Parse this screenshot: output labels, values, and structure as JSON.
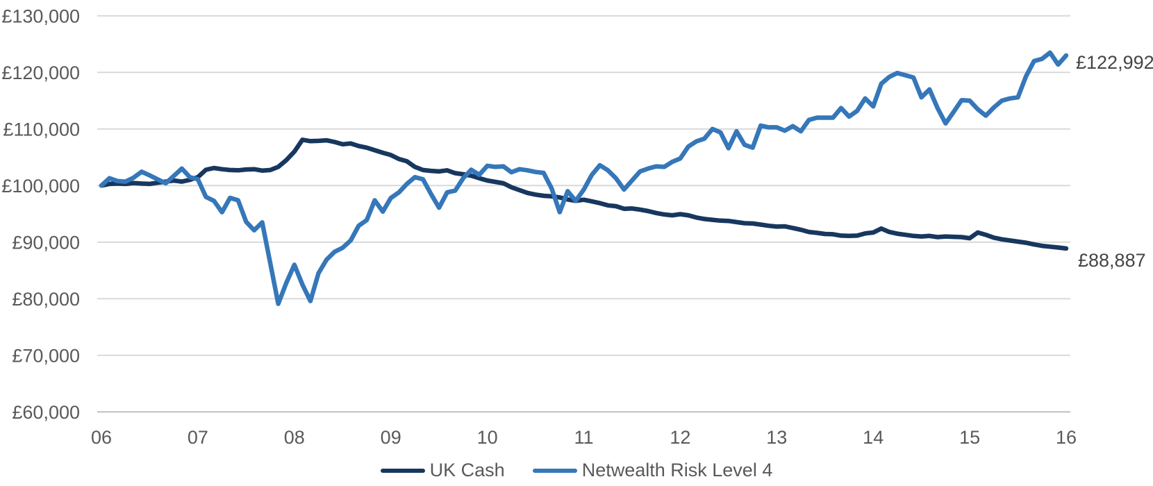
{
  "chart_data": {
    "type": "line",
    "title": "",
    "xlabel": "",
    "ylabel": "",
    "grid": "horizontal",
    "legend_position": "bottom",
    "ylim": [
      60000,
      130000
    ],
    "y_ticks": [
      {
        "value": 130000,
        "label": "£130,000"
      },
      {
        "value": 120000,
        "label": "£120,000"
      },
      {
        "value": 110000,
        "label": "£110,000"
      },
      {
        "value": 100000,
        "label": "£100,000"
      },
      {
        "value": 90000,
        "label": "£90,000"
      },
      {
        "value": 80000,
        "label": "£80,000"
      },
      {
        "value": 70000,
        "label": "£70,000"
      },
      {
        "value": 60000,
        "label": "£60,000"
      }
    ],
    "x_tick_labels": [
      "06",
      "07",
      "08",
      "09",
      "10",
      "11",
      "12",
      "13",
      "14",
      "15",
      "16"
    ],
    "x_unit": "monthly points from year 06 to year 16",
    "series": [
      {
        "name": "UK Cash",
        "color": "#17375E",
        "end_label": "£88,887",
        "final_value": 88887,
        "values": [
          100000,
          100300,
          100350,
          100300,
          100450,
          100350,
          100300,
          100500,
          100700,
          100900,
          100700,
          101000,
          101500,
          102800,
          103100,
          102900,
          102750,
          102700,
          102850,
          102900,
          102650,
          102750,
          103300,
          104500,
          106000,
          108100,
          107850,
          107900,
          108000,
          107700,
          107300,
          107450,
          107000,
          106700,
          106250,
          105800,
          105400,
          104700,
          104300,
          103300,
          102750,
          102600,
          102500,
          102700,
          102200,
          102000,
          101750,
          101300,
          100900,
          100650,
          100400,
          99700,
          99200,
          98700,
          98400,
          98200,
          98100,
          97900,
          97550,
          97300,
          97500,
          97200,
          96900,
          96500,
          96350,
          95900,
          95950,
          95750,
          95500,
          95150,
          94900,
          94750,
          94950,
          94750,
          94350,
          94100,
          93950,
          93800,
          93750,
          93550,
          93350,
          93300,
          93100,
          92900,
          92750,
          92800,
          92500,
          92200,
          91800,
          91650,
          91450,
          91400,
          91150,
          91100,
          91150,
          91550,
          91700,
          92400,
          91800,
          91500,
          91300,
          91100,
          91000,
          91100,
          90900,
          91000,
          90950,
          90900,
          90700,
          91700,
          91300,
          90800,
          90500,
          90300,
          90100,
          89900,
          89600,
          89350,
          89200,
          89050,
          88887
        ]
      },
      {
        "name": "Netwealth Risk Level 4",
        "color": "#3577B9",
        "end_label": "£122,992",
        "final_value": 122992,
        "values": [
          100000,
          101300,
          100800,
          100700,
          101400,
          102450,
          101800,
          101100,
          100400,
          101700,
          103000,
          101500,
          101100,
          98000,
          97300,
          95300,
          97830,
          97400,
          93600,
          92100,
          93500,
          86300,
          79100,
          82800,
          86000,
          82500,
          79600,
          84500,
          86900,
          88300,
          89000,
          90300,
          92900,
          93900,
          97400,
          95400,
          97800,
          98800,
          100300,
          101500,
          101100,
          98500,
          96100,
          98800,
          99100,
          101300,
          102800,
          101900,
          103500,
          103300,
          103400,
          102350,
          102900,
          102700,
          102400,
          102250,
          99500,
          95300,
          99000,
          97300,
          99300,
          101900,
          103600,
          102700,
          101300,
          99300,
          100900,
          102500,
          103000,
          103400,
          103300,
          104200,
          104800,
          106900,
          107800,
          108300,
          110000,
          109400,
          106600,
          109600,
          107200,
          106700,
          110600,
          110300,
          110300,
          109700,
          110500,
          109600,
          111600,
          112000,
          112000,
          112000,
          113700,
          112200,
          113200,
          115400,
          114000,
          118000,
          119200,
          119900,
          119500,
          119100,
          115600,
          117000,
          113700,
          111000,
          113000,
          115100,
          115000,
          113500,
          112350,
          113800,
          115000,
          115400,
          115600,
          119300,
          122000,
          122400,
          123500,
          121400,
          122992
        ]
      }
    ]
  },
  "colors": {
    "gridline": "#D9D9D9",
    "axis_line": "#BFBFBF",
    "tick_text": "#595959",
    "end_label_text": "#454545"
  },
  "legend": {
    "items": [
      {
        "label": "UK Cash",
        "color": "#17375E"
      },
      {
        "label": "Netwealth Risk Level 4",
        "color": "#3577B9"
      }
    ]
  }
}
